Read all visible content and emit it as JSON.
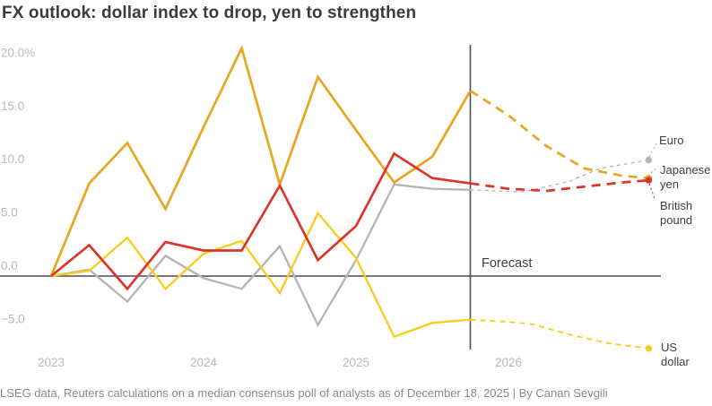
{
  "header": {
    "title": "FX outlook: dollar index to drop, yen to strengthen"
  },
  "footer": {
    "source_line": "LSEG data, Reuters calculations on a median consensus poll of analysts as of December 18, 2025 | By Canan Sevgili"
  },
  "chart_data": {
    "type": "line",
    "title": "FX outlook: dollar index to drop, yen to strengthen",
    "unit": "% change",
    "grid": "zero-line-only",
    "y_axis": {
      "ticks": [
        {
          "label": "20.0%",
          "value": 20
        },
        {
          "label": "15.0",
          "value": 15
        },
        {
          "label": "10.0",
          "value": 10
        },
        {
          "label": "5.0",
          "value": 5
        },
        {
          "label": "0.0",
          "value": 0
        },
        {
          "label": "−5.0",
          "value": -5
        }
      ],
      "range": [
        -7.5,
        21.7
      ]
    },
    "x_axis": {
      "ticks": [
        {
          "label": "2023",
          "year": 2023
        },
        {
          "label": "2024",
          "year": 2024
        },
        {
          "label": "2025",
          "year": 2025
        },
        {
          "label": "2026",
          "year": 2026
        }
      ],
      "range": [
        2023.0,
        2027.1
      ]
    },
    "forecast": {
      "label": "Forecast",
      "divider_x": 2025.75
    },
    "series": [
      {
        "name": "Japanese yen",
        "color": "#e8a51f",
        "forecast_line": "bold-dash",
        "solid": [
          [
            2023.0,
            0
          ],
          [
            2023.25,
            8.7
          ],
          [
            2023.5,
            12.5
          ],
          [
            2023.75,
            6.3
          ],
          [
            2024.0,
            14.0
          ],
          [
            2024.25,
            21.4
          ],
          [
            2024.5,
            8.6
          ],
          [
            2024.75,
            18.7
          ],
          [
            2025.0,
            13.7
          ],
          [
            2025.25,
            8.8
          ],
          [
            2025.5,
            11.2
          ],
          [
            2025.75,
            17.4
          ]
        ],
        "forecast_points": [
          [
            2025.75,
            17.4
          ],
          [
            2026.0,
            15.1
          ],
          [
            2026.25,
            12.2
          ],
          [
            2026.5,
            10.1
          ],
          [
            2026.75,
            9.4
          ],
          [
            2026.92,
            9.2
          ]
        ]
      },
      {
        "name": "British pound",
        "color": "#dc3428",
        "forecast_line": "bold-dash",
        "solid": [
          [
            2023.0,
            0
          ],
          [
            2023.25,
            2.9
          ],
          [
            2023.5,
            -1.2
          ],
          [
            2023.75,
            3.2
          ],
          [
            2024.0,
            2.4
          ],
          [
            2024.25,
            2.4
          ],
          [
            2024.5,
            8.5
          ],
          [
            2024.75,
            1.5
          ],
          [
            2025.0,
            4.7
          ],
          [
            2025.25,
            11.5
          ],
          [
            2025.5,
            9.2
          ],
          [
            2025.75,
            8.7
          ]
        ],
        "forecast_points": [
          [
            2025.75,
            8.7
          ],
          [
            2026.0,
            8.2
          ],
          [
            2026.25,
            8.0
          ],
          [
            2026.5,
            8.4
          ],
          [
            2026.75,
            8.8
          ],
          [
            2026.92,
            9.0
          ]
        ]
      },
      {
        "name": "Euro",
        "color": "#b4b4b4",
        "forecast_line": "fine-dash",
        "solid": [
          [
            2023.0,
            0
          ],
          [
            2023.25,
            0.6
          ],
          [
            2023.5,
            -2.4
          ],
          [
            2023.75,
            1.9
          ],
          [
            2024.0,
            -0.2
          ],
          [
            2024.25,
            -1.2
          ],
          [
            2024.5,
            2.8
          ],
          [
            2024.75,
            -4.6
          ],
          [
            2025.0,
            1.5
          ],
          [
            2025.25,
            8.6
          ],
          [
            2025.5,
            8.2
          ],
          [
            2025.75,
            8.1
          ]
        ],
        "forecast_points": [
          [
            2025.75,
            8.1
          ],
          [
            2026.1,
            7.9
          ],
          [
            2026.4,
            8.9
          ],
          [
            2026.6,
            10.1
          ],
          [
            2026.92,
            10.9
          ]
        ]
      },
      {
        "name": "US dollar",
        "color": "#f7cd1b",
        "forecast_line": "fine-dash",
        "solid": [
          [
            2023.0,
            0
          ],
          [
            2023.25,
            0.5
          ],
          [
            2023.5,
            3.6
          ],
          [
            2023.75,
            -1.2
          ],
          [
            2024.0,
            2.1
          ],
          [
            2024.25,
            3.3
          ],
          [
            2024.5,
            -1.6
          ],
          [
            2024.75,
            5.9
          ],
          [
            2025.0,
            1.7
          ],
          [
            2025.25,
            -5.7
          ],
          [
            2025.5,
            -4.4
          ],
          [
            2025.75,
            -4.1
          ]
        ],
        "forecast_points": [
          [
            2025.75,
            -4.1
          ],
          [
            2026.0,
            -4.3
          ],
          [
            2026.15,
            -4.5
          ],
          [
            2026.4,
            -5.5
          ],
          [
            2026.65,
            -6.3
          ],
          [
            2026.92,
            -6.8
          ]
        ]
      }
    ]
  }
}
